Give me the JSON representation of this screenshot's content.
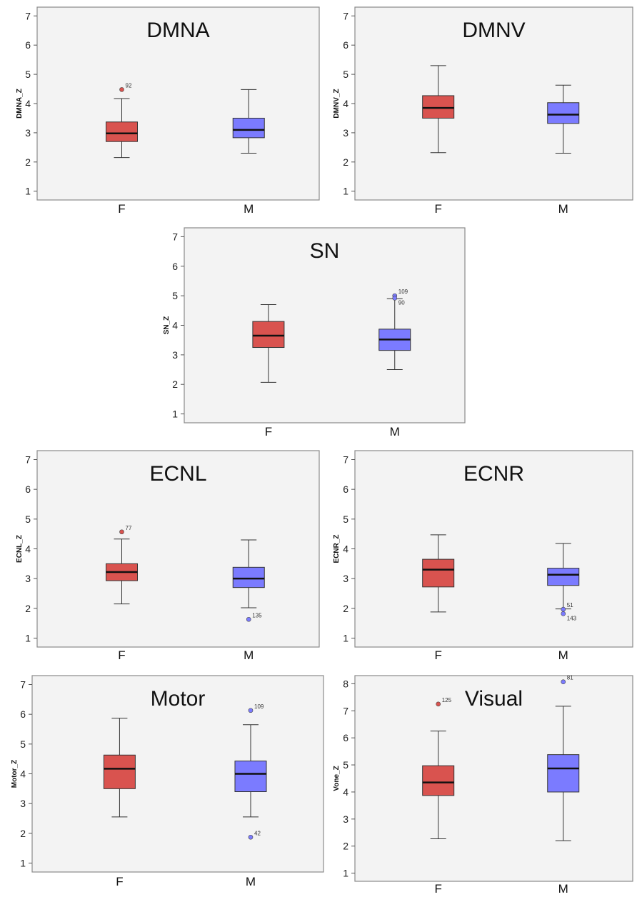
{
  "colors": {
    "F": "#d9534f",
    "M": "#7b7bff",
    "panel_bg": "#f3f3f3",
    "axis": "#555555"
  },
  "chart_data": [
    {
      "type": "box",
      "title": "DMNA",
      "ylabel": "DMNA_Z",
      "ylim": [
        0.7,
        7.3
      ],
      "yticks": [
        1,
        2,
        3,
        4,
        5,
        6,
        7
      ],
      "categories": [
        "F",
        "M"
      ],
      "boxes": [
        {
          "category": "F",
          "whisker_low": 2.15,
          "q1": 2.7,
          "median": 2.98,
          "q3": 3.37,
          "whisker_high": 4.17,
          "outliers": [
            {
              "value": 4.48,
              "label": "92"
            }
          ]
        },
        {
          "category": "M",
          "whisker_low": 2.3,
          "q1": 2.83,
          "median": 3.1,
          "q3": 3.5,
          "whisker_high": 4.48,
          "outliers": []
        }
      ]
    },
    {
      "type": "box",
      "title": "DMNV",
      "ylabel": "DMNV_Z",
      "ylim": [
        0.7,
        7.3
      ],
      "yticks": [
        1,
        2,
        3,
        4,
        5,
        6,
        7
      ],
      "categories": [
        "F",
        "M"
      ],
      "boxes": [
        {
          "category": "F",
          "whisker_low": 2.32,
          "q1": 3.5,
          "median": 3.85,
          "q3": 4.27,
          "whisker_high": 5.3,
          "outliers": []
        },
        {
          "category": "M",
          "whisker_low": 2.3,
          "q1": 3.32,
          "median": 3.62,
          "q3": 4.03,
          "whisker_high": 4.63,
          "outliers": []
        }
      ]
    },
    {
      "type": "box",
      "title": "SN",
      "ylabel": "SN_Z",
      "ylim": [
        0.7,
        7.3
      ],
      "yticks": [
        1,
        2,
        3,
        4,
        5,
        6,
        7
      ],
      "categories": [
        "F",
        "M"
      ],
      "boxes": [
        {
          "category": "F",
          "whisker_low": 2.07,
          "q1": 3.25,
          "median": 3.65,
          "q3": 4.13,
          "whisker_high": 4.7,
          "outliers": []
        },
        {
          "category": "M",
          "whisker_low": 2.5,
          "q1": 3.15,
          "median": 3.52,
          "q3": 3.87,
          "whisker_high": 4.9,
          "outliers": [
            {
              "value": 5.0,
              "label": "109"
            },
            {
              "value": 4.92,
              "label": "90"
            }
          ]
        }
      ]
    },
    {
      "type": "box",
      "title": "ECNL",
      "ylabel": "ECNL_Z",
      "ylim": [
        0.7,
        7.3
      ],
      "yticks": [
        1,
        2,
        3,
        4,
        5,
        6,
        7
      ],
      "categories": [
        "F",
        "M"
      ],
      "boxes": [
        {
          "category": "F",
          "whisker_low": 2.15,
          "q1": 2.93,
          "median": 3.22,
          "q3": 3.5,
          "whisker_high": 4.33,
          "outliers": [
            {
              "value": 4.57,
              "label": "77"
            }
          ]
        },
        {
          "category": "M",
          "whisker_low": 2.02,
          "q1": 2.7,
          "median": 3.0,
          "q3": 3.38,
          "whisker_high": 4.3,
          "outliers": [
            {
              "value": 1.63,
              "label": "135"
            }
          ]
        }
      ]
    },
    {
      "type": "box",
      "title": "ECNR",
      "ylabel": "ECNR_Z",
      "ylim": [
        0.7,
        7.3
      ],
      "yticks": [
        1,
        2,
        3,
        4,
        5,
        6,
        7
      ],
      "categories": [
        "F",
        "M"
      ],
      "boxes": [
        {
          "category": "F",
          "whisker_low": 1.88,
          "q1": 2.72,
          "median": 3.3,
          "q3": 3.65,
          "whisker_high": 4.47,
          "outliers": []
        },
        {
          "category": "M",
          "whisker_low": 1.98,
          "q1": 2.77,
          "median": 3.13,
          "q3": 3.35,
          "whisker_high": 4.18,
          "outliers": [
            {
              "value": 1.97,
              "label": "51"
            },
            {
              "value": 1.82,
              "label": "143"
            }
          ]
        }
      ]
    },
    {
      "type": "box",
      "title": "Motor",
      "ylabel": "Motor_Z",
      "ylim": [
        0.7,
        7.3
      ],
      "yticks": [
        1,
        2,
        3,
        4,
        5,
        6,
        7
      ],
      "categories": [
        "F",
        "M"
      ],
      "boxes": [
        {
          "category": "F",
          "whisker_low": 2.55,
          "q1": 3.5,
          "median": 4.17,
          "q3": 4.63,
          "whisker_high": 5.87,
          "outliers": []
        },
        {
          "category": "M",
          "whisker_low": 2.55,
          "q1": 3.4,
          "median": 4.0,
          "q3": 4.43,
          "whisker_high": 5.65,
          "outliers": [
            {
              "value": 6.13,
              "label": "109"
            },
            {
              "value": 1.87,
              "label": "42"
            }
          ]
        }
      ]
    },
    {
      "type": "box",
      "title": "Visual",
      "ylabel": "Vone_Z",
      "ylim": [
        0.7,
        8.3
      ],
      "yticks": [
        1,
        2,
        3,
        4,
        5,
        6,
        7,
        8
      ],
      "categories": [
        "F",
        "M"
      ],
      "boxes": [
        {
          "category": "F",
          "whisker_low": 2.27,
          "q1": 3.87,
          "median": 4.35,
          "q3": 4.97,
          "whisker_high": 6.25,
          "outliers": [
            {
              "value": 7.25,
              "label": "125"
            }
          ]
        },
        {
          "category": "M",
          "whisker_low": 2.2,
          "q1": 4.0,
          "median": 4.87,
          "q3": 5.38,
          "whisker_high": 7.17,
          "outliers": [
            {
              "value": 8.07,
              "label": "81"
            }
          ]
        }
      ]
    }
  ]
}
